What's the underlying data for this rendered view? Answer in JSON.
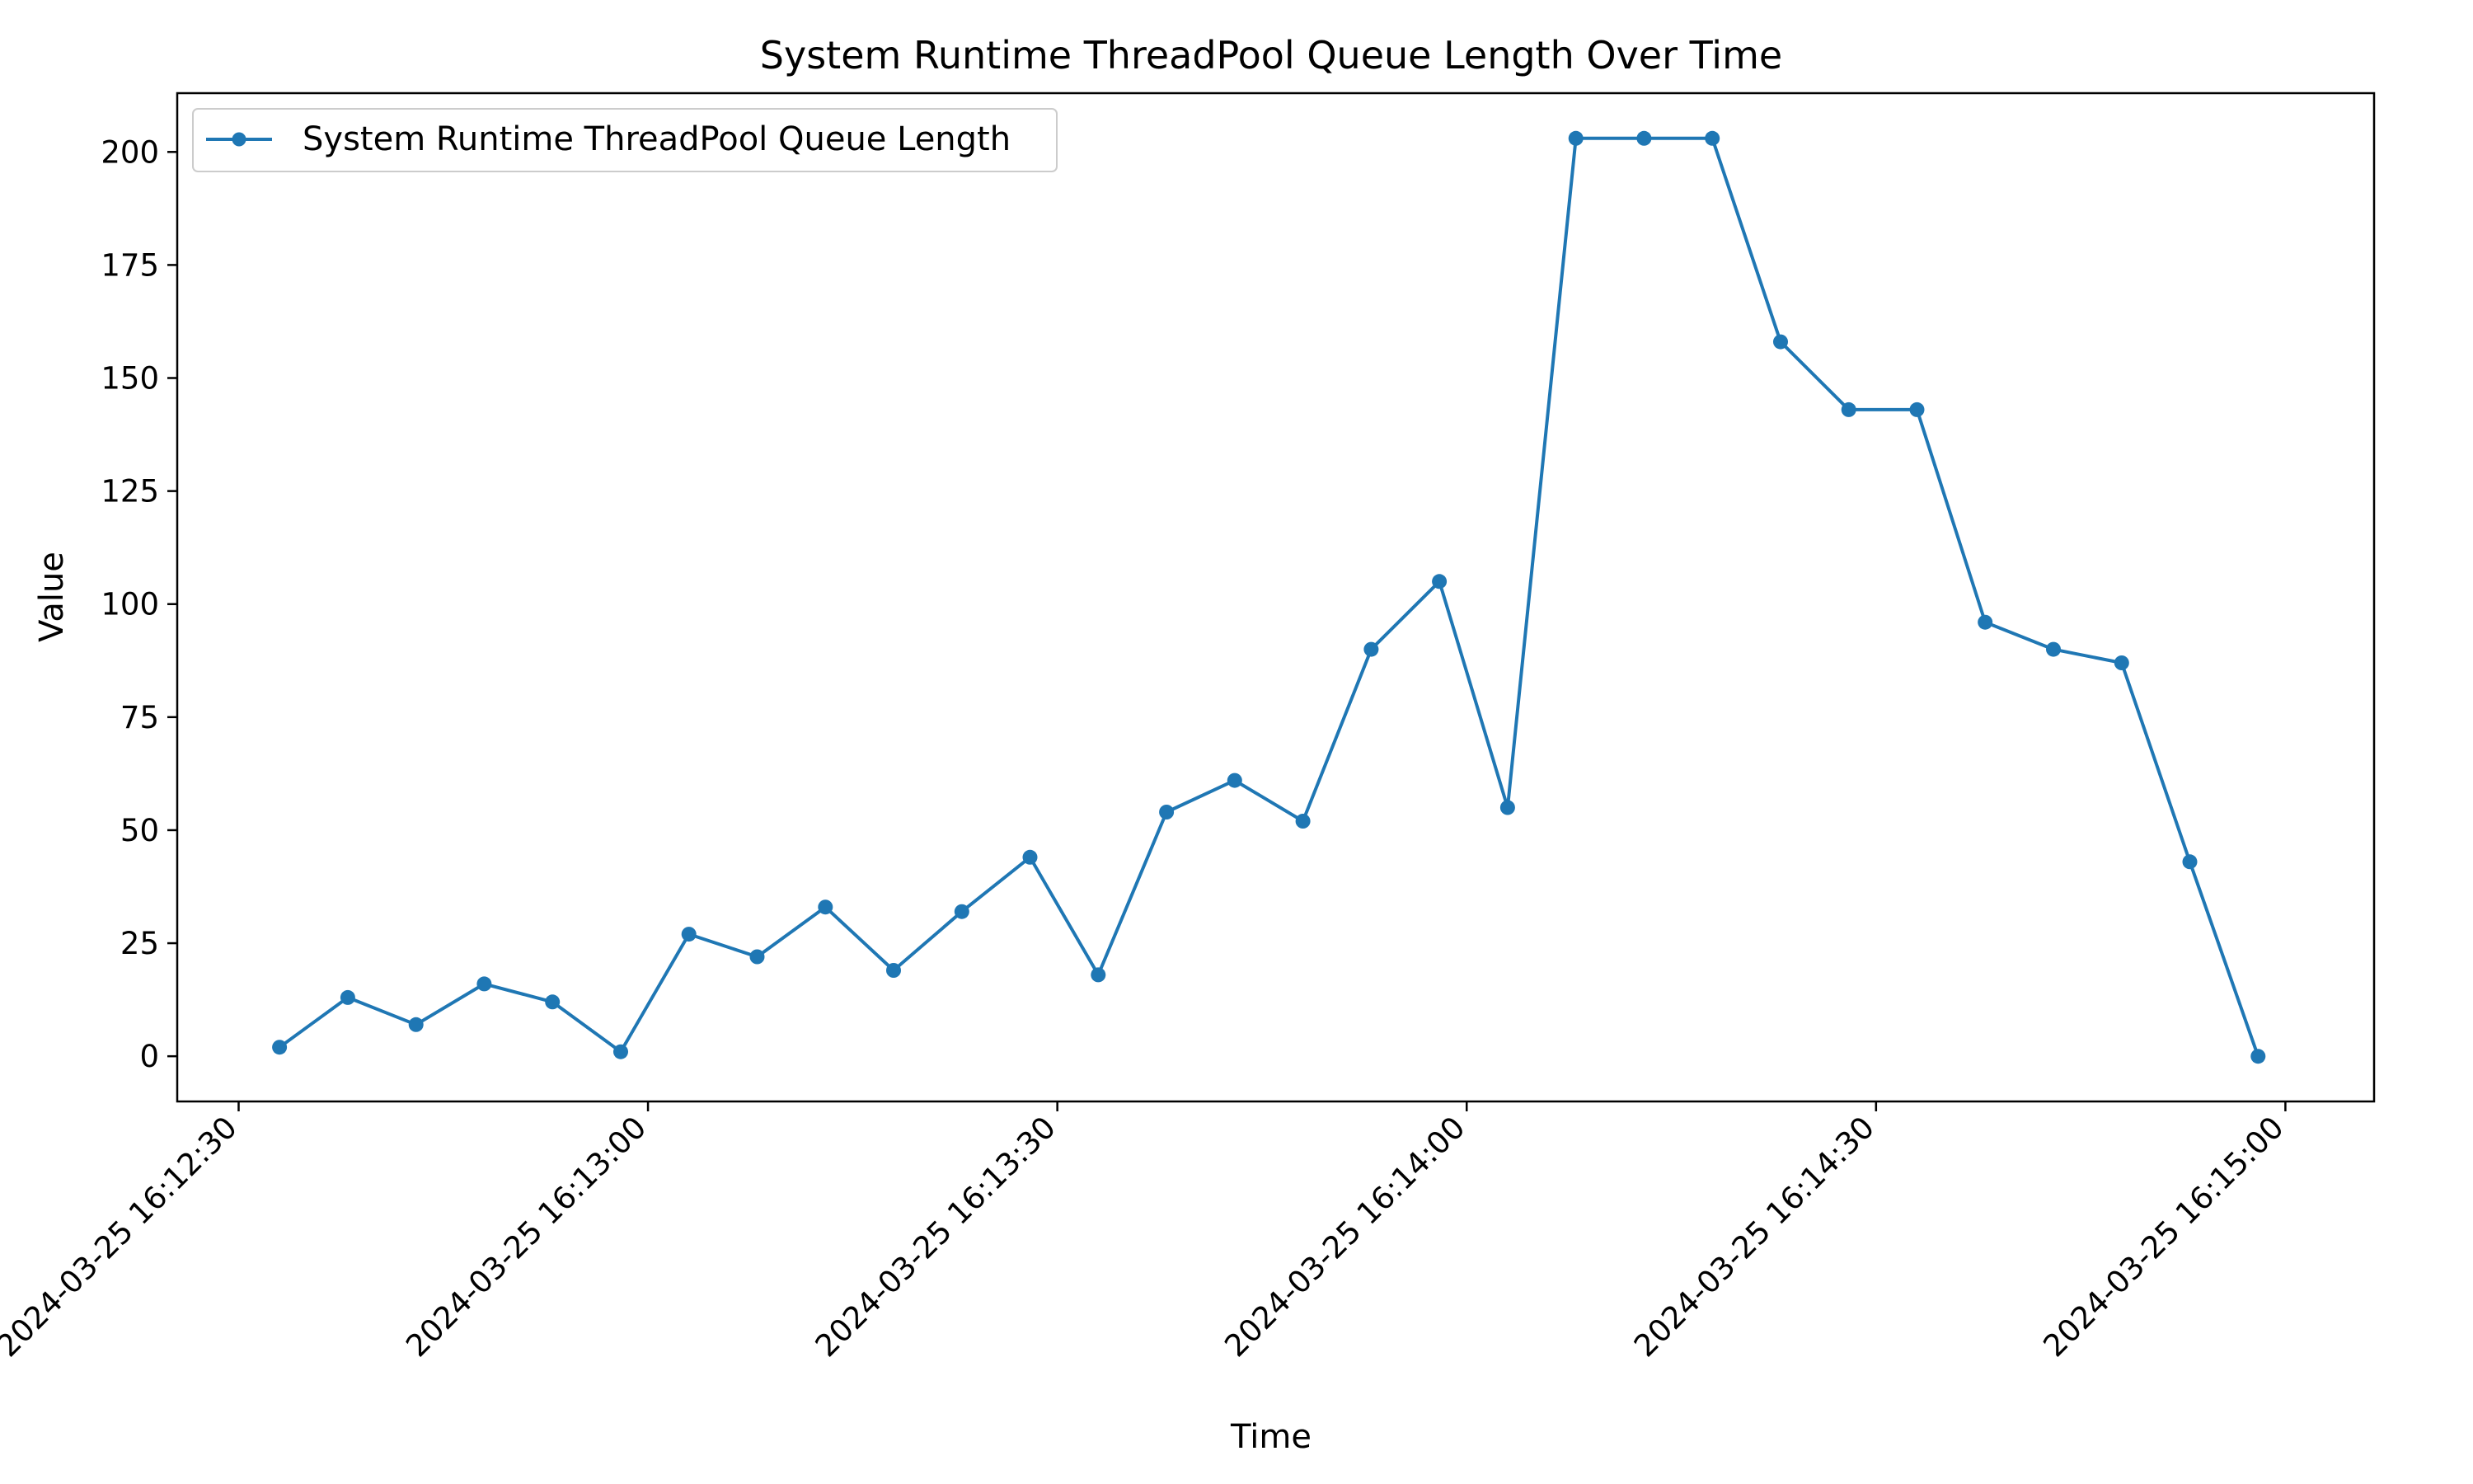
{
  "chart_data": {
    "type": "line",
    "title": "System Runtime ThreadPool Queue Length Over Time",
    "xlabel": "Time",
    "ylabel": "Value",
    "x_tick_labels": [
      "2024-03-25 16:12:30",
      "2024-03-25 16:13:00",
      "2024-03-25 16:13:30",
      "2024-03-25 16:14:00",
      "2024-03-25 16:14:30",
      "2024-03-25 16:15:00"
    ],
    "y_ticks": [
      0,
      25,
      50,
      75,
      100,
      125,
      150,
      175,
      200
    ],
    "ylim": [
      -10,
      213
    ],
    "xlim": [
      "2024-03-25 16:12:25.5",
      "2024-03-25 16:15:06.5"
    ],
    "grid": false,
    "legend_position": "top-left",
    "colors": {
      "series": "#1f77b4",
      "axes": "#000000",
      "background": "#ffffff"
    },
    "series": [
      {
        "name": "System Runtime ThreadPool Queue Length",
        "x": [
          "2024-03-25 16:12:33",
          "2024-03-25 16:12:38",
          "2024-03-25 16:12:43",
          "2024-03-25 16:12:48",
          "2024-03-25 16:12:53",
          "2024-03-25 16:12:58",
          "2024-03-25 16:13:03",
          "2024-03-25 16:13:08",
          "2024-03-25 16:13:13",
          "2024-03-25 16:13:18",
          "2024-03-25 16:13:23",
          "2024-03-25 16:13:28",
          "2024-03-25 16:13:33",
          "2024-03-25 16:13:38",
          "2024-03-25 16:13:43",
          "2024-03-25 16:13:48",
          "2024-03-25 16:13:53",
          "2024-03-25 16:13:58",
          "2024-03-25 16:14:03",
          "2024-03-25 16:14:08",
          "2024-03-25 16:14:13",
          "2024-03-25 16:14:18",
          "2024-03-25 16:14:23",
          "2024-03-25 16:14:28",
          "2024-03-25 16:14:33",
          "2024-03-25 16:14:38",
          "2024-03-25 16:14:43",
          "2024-03-25 16:14:48",
          "2024-03-25 16:14:53",
          "2024-03-25 16:14:58"
        ],
        "values": [
          2,
          13,
          7,
          16,
          12,
          1,
          27,
          22,
          33,
          19,
          32,
          44,
          18,
          54,
          61,
          52,
          90,
          105,
          55,
          203,
          203,
          203,
          158,
          143,
          143,
          96,
          90,
          87,
          43,
          0
        ]
      }
    ]
  }
}
